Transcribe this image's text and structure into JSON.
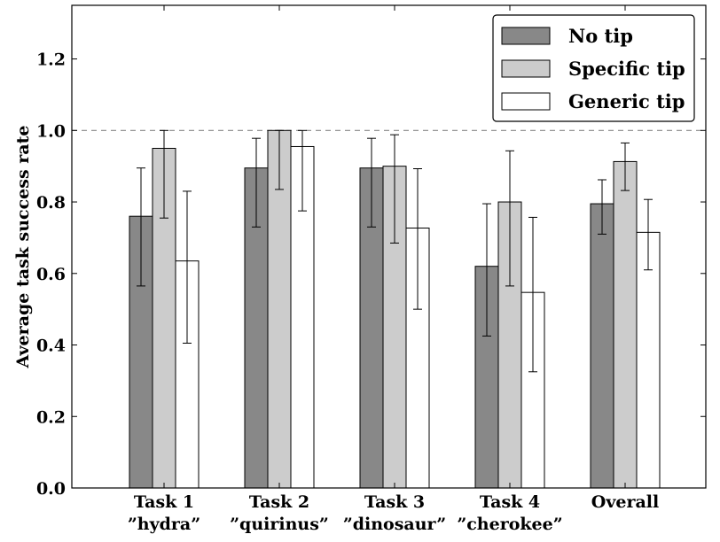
{
  "chart_data": {
    "type": "bar",
    "ylabel": "Average task success rate",
    "ylim": [
      0,
      1.35
    ],
    "yticks": [
      "0.0",
      "0.2",
      "0.4",
      "0.6",
      "0.8",
      "1.0",
      "1.2"
    ],
    "reference_line": 1.0,
    "legend_position": "top-right",
    "categories": [
      {
        "line1": "Task 1",
        "line2": "”hydra”"
      },
      {
        "line1": "Task 2",
        "line2": "”quirinus”"
      },
      {
        "line1": "Task 3",
        "line2": "”dinosaur”"
      },
      {
        "line1": "Task 4",
        "line2": "”cherokee”"
      },
      {
        "line1": "Overall",
        "line2": ""
      }
    ],
    "series": [
      {
        "name": "No tip",
        "color": "#888888",
        "values": [
          0.76,
          0.895,
          0.895,
          0.62,
          0.795
        ],
        "err_low": [
          0.565,
          0.73,
          0.73,
          0.425,
          0.71
        ],
        "err_high": [
          0.895,
          0.978,
          0.978,
          0.795,
          0.862
        ]
      },
      {
        "name": "Specific tip",
        "color": "#cccccc",
        "values": [
          0.95,
          1.0,
          0.9,
          0.8,
          0.913
        ],
        "err_low": [
          0.755,
          0.835,
          0.685,
          0.565,
          0.832
        ],
        "err_high": [
          1.0,
          1.0,
          0.988,
          0.943,
          0.965
        ]
      },
      {
        "name": "Generic tip",
        "color": "#ffffff",
        "values": [
          0.635,
          0.955,
          0.727,
          0.547,
          0.715
        ],
        "err_low": [
          0.405,
          0.775,
          0.5,
          0.325,
          0.61
        ],
        "err_high": [
          0.83,
          1.0,
          0.893,
          0.757,
          0.807
        ]
      }
    ]
  }
}
